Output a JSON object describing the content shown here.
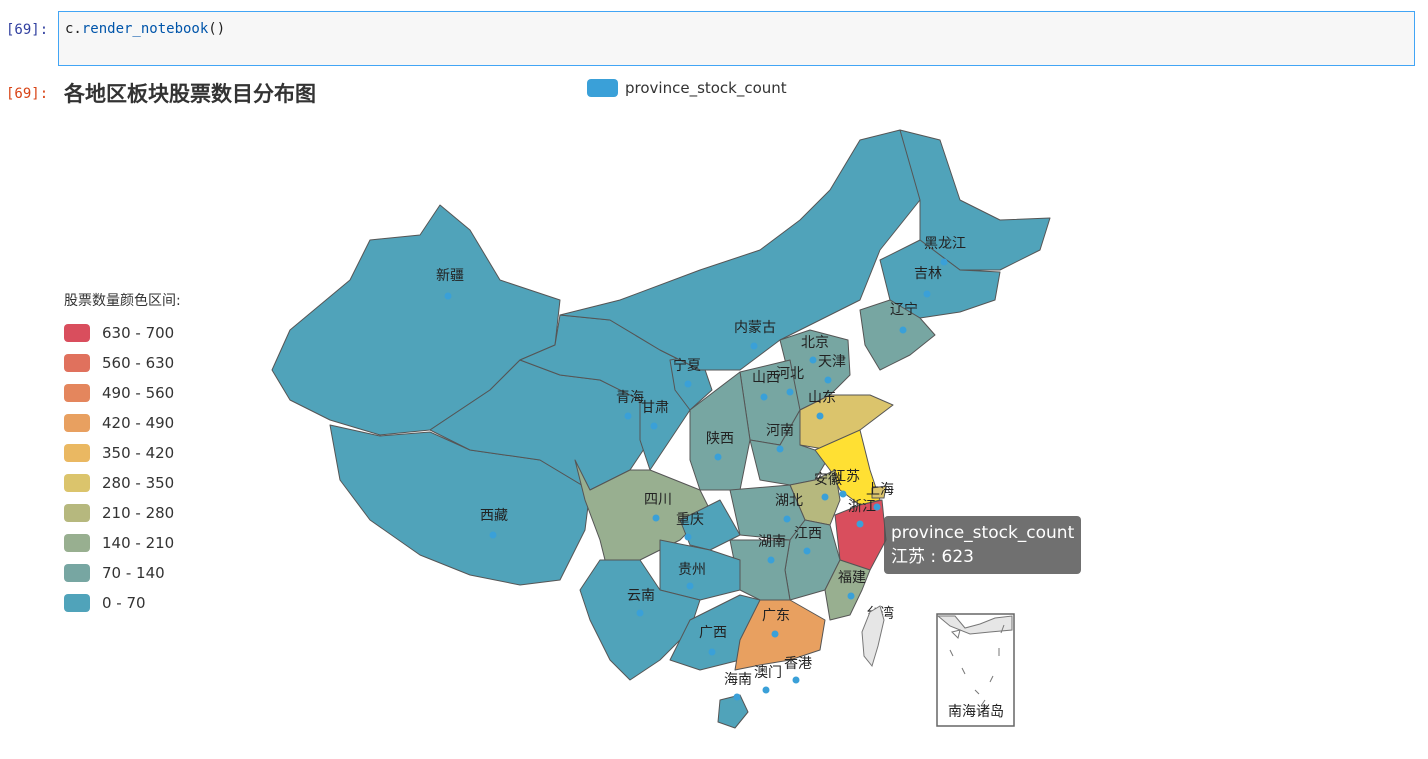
{
  "notebook": {
    "input_prompt": "[69]:",
    "output_prompt": "[69]:",
    "code_obj": "c.",
    "code_fn": "render_notebook",
    "code_args": "()"
  },
  "chart": {
    "title": "各地区板块股票数目分布图",
    "legend_label": "province_stock_count",
    "legend_color": "#3aa0d8"
  },
  "visual_map": {
    "title": "股票数量颜色区间:",
    "pieces": [
      {
        "label": "630 - 700",
        "color": "#d94e5d"
      },
      {
        "label": "560 - 630",
        "color": "#e0715d"
      },
      {
        "label": "490 - 560",
        "color": "#e4865d"
      },
      {
        "label": "420 - 490",
        "color": "#e8a060"
      },
      {
        "label": "350 - 420",
        "color": "#eab862"
      },
      {
        "label": "280 - 350",
        "color": "#dbc46c"
      },
      {
        "label": "210 - 280",
        "color": "#b6b87e"
      },
      {
        "label": "140 - 210",
        "color": "#98af90"
      },
      {
        "label": "70 - 140",
        "color": "#77a6a2"
      },
      {
        "label": "0 - 70",
        "color": "#50a3ba"
      }
    ]
  },
  "provinces": [
    {
      "name": "新疆"
    },
    {
      "name": "西藏"
    },
    {
      "name": "青海"
    },
    {
      "name": "甘肃"
    },
    {
      "name": "宁夏"
    },
    {
      "name": "内蒙古"
    },
    {
      "name": "黑龙江"
    },
    {
      "name": "吉林"
    },
    {
      "name": "辽宁"
    },
    {
      "name": "北京"
    },
    {
      "name": "天津"
    },
    {
      "name": "河北"
    },
    {
      "name": "山西"
    },
    {
      "name": "山东"
    },
    {
      "name": "陕西"
    },
    {
      "name": "河南"
    },
    {
      "name": "江苏"
    },
    {
      "name": "安徽"
    },
    {
      "name": "上海"
    },
    {
      "name": "浙江"
    },
    {
      "name": "湖北"
    },
    {
      "name": "四川"
    },
    {
      "name": "重庆"
    },
    {
      "name": "江西"
    },
    {
      "name": "湖南"
    },
    {
      "name": "贵州"
    },
    {
      "name": "福建"
    },
    {
      "name": "云南"
    },
    {
      "name": "广西"
    },
    {
      "name": "广东"
    },
    {
      "name": "台湾"
    },
    {
      "name": "香港"
    },
    {
      "name": "澳门"
    },
    {
      "name": "海南"
    }
  ],
  "inset_label": "南海诸岛",
  "tooltip": {
    "series": "province_stock_count",
    "text": "江苏 : 623"
  }
}
